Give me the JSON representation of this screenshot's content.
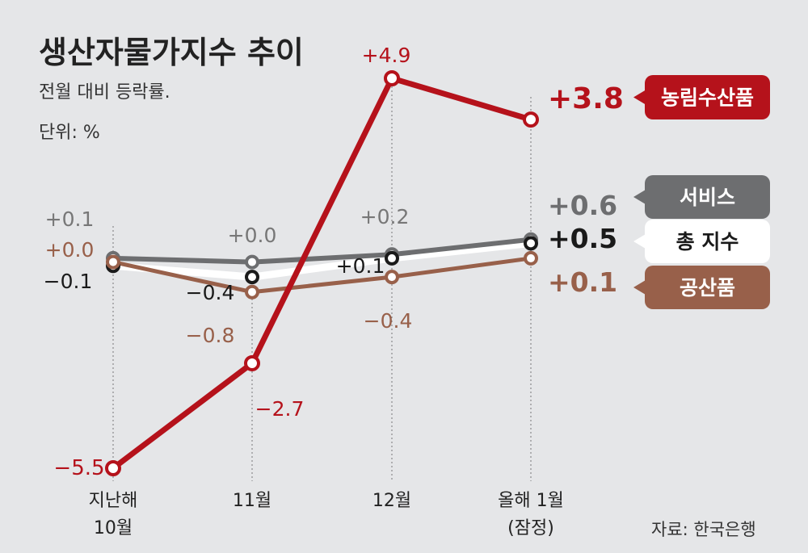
{
  "header": {
    "title": "생산자물가지수 추이",
    "subtitle": "전월 대비 등락률.",
    "unit": "단위: %"
  },
  "source": "자료: 한국은행",
  "chart_data": {
    "type": "line",
    "categories": [
      "지난해\n10월",
      "11월",
      "12월",
      "올해 1월\n(잠정)"
    ],
    "ylim": [
      -5.5,
      4.9
    ],
    "grid": false,
    "legend_position": "right",
    "series": [
      {
        "name": "농림수산품",
        "values": [
          -5.5,
          -2.7,
          4.9,
          3.8
        ],
        "labels": [
          "−5.5",
          "−2.7",
          "+4.9",
          "+3.8"
        ],
        "color": "#b5121b"
      },
      {
        "name": "서비스",
        "values": [
          0.1,
          0.0,
          0.2,
          0.6
        ],
        "labels": [
          "+0.1",
          "+0.0",
          "+0.2",
          "+0.6"
        ],
        "color": "#6d6e70"
      },
      {
        "name": "총 지수",
        "values": [
          -0.1,
          -0.4,
          0.1,
          0.5
        ],
        "labels": [
          "−0.1",
          "−0.4",
          "+0.1",
          "+0.5"
        ],
        "color": "#1a1a1a"
      },
      {
        "name": "공산품",
        "values": [
          0.0,
          -0.8,
          -0.4,
          0.1
        ],
        "labels": [
          "+0.0",
          "−0.8",
          "−0.4",
          "+0.1"
        ],
        "color": "#98604a"
      }
    ]
  }
}
